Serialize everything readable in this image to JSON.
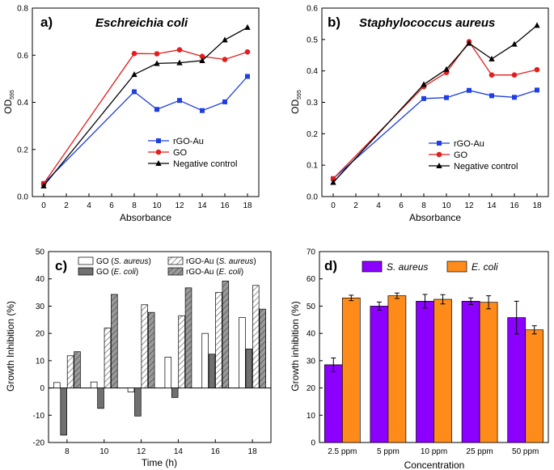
{
  "chart_data": [
    {
      "id": "a",
      "type": "line",
      "panel_label": "a)",
      "title": "Eschreichia coli",
      "xlabel": "Absorbance",
      "ylabel": "OD",
      "ylabel_sub": "595",
      "x": [
        0,
        8,
        10,
        12,
        14,
        16,
        18
      ],
      "xlim": [
        -1,
        19
      ],
      "xticks": [
        0,
        2,
        4,
        6,
        8,
        10,
        12,
        14,
        16,
        18
      ],
      "ylim": [
        0,
        0.8
      ],
      "yticks": [
        0.0,
        0.2,
        0.4,
        0.6,
        0.8
      ],
      "legend_position": "bottom-right",
      "series": [
        {
          "name": "rGO-Au",
          "color": "#1f3fe0",
          "marker": "square",
          "values": [
            0.055,
            0.445,
            0.37,
            0.408,
            0.365,
            0.402,
            0.51
          ]
        },
        {
          "name": "GO",
          "color": "#e01f1f",
          "marker": "circle",
          "values": [
            0.055,
            0.607,
            0.606,
            0.623,
            0.595,
            0.582,
            0.614
          ]
        },
        {
          "name": "Negative control",
          "color": "#000000",
          "marker": "triangle",
          "values": [
            0.045,
            0.518,
            0.565,
            0.568,
            0.577,
            0.665,
            0.718
          ]
        }
      ]
    },
    {
      "id": "b",
      "type": "line",
      "panel_label": "b)",
      "title": "Staphylococcus aureus",
      "xlabel": "Absorbance",
      "ylabel": "OD",
      "ylabel_sub": "595",
      "x": [
        0,
        8,
        10,
        12,
        14,
        16,
        18
      ],
      "xlim": [
        -1,
        19
      ],
      "xticks": [
        0,
        2,
        4,
        6,
        8,
        10,
        12,
        14,
        16,
        18
      ],
      "ylim": [
        0,
        0.6
      ],
      "yticks": [
        0.0,
        0.1,
        0.2,
        0.3,
        0.4,
        0.5,
        0.6
      ],
      "legend_position": "bottom-right",
      "series": [
        {
          "name": "rGO-Au",
          "color": "#1f3fe0",
          "marker": "square",
          "values": [
            0.057,
            0.312,
            0.315,
            0.338,
            0.321,
            0.316,
            0.339
          ]
        },
        {
          "name": "GO",
          "color": "#e01f1f",
          "marker": "circle",
          "values": [
            0.057,
            0.35,
            0.395,
            0.493,
            0.387,
            0.387,
            0.404
          ]
        },
        {
          "name": "Negative control",
          "color": "#000000",
          "marker": "triangle",
          "values": [
            0.045,
            0.357,
            0.405,
            0.488,
            0.438,
            0.485,
            0.545
          ]
        }
      ]
    },
    {
      "id": "c",
      "type": "bar",
      "panel_label": "c)",
      "title": "",
      "xlabel": "Time (h)",
      "ylabel": "Growth Inhibition (%)",
      "categories": [
        "8",
        "10",
        "12",
        "14",
        "16",
        "18"
      ],
      "ylim": [
        -20,
        50
      ],
      "yticks": [
        -20,
        -10,
        0,
        10,
        20,
        30,
        40,
        50
      ],
      "legend_position": "top",
      "series": [
        {
          "name": "GO",
          "species": "S. aureus",
          "fill": "white",
          "values": [
            2.0,
            2.2,
            -1.5,
            11.3,
            20.0,
            25.8
          ]
        },
        {
          "name": "GO",
          "species": "E. coli",
          "fill": "dark-gray",
          "values": [
            -17.3,
            -7.5,
            -10.3,
            -3.5,
            12.4,
            14.3
          ]
        },
        {
          "name": "rGO-Au",
          "species": "S. aureus",
          "fill": "light-hatch",
          "values": [
            11.8,
            22.0,
            30.5,
            26.5,
            35.0,
            37.6
          ]
        },
        {
          "name": "rGO-Au",
          "species": "E. coli",
          "fill": "dark-hatch",
          "values": [
            13.3,
            34.3,
            27.7,
            36.7,
            39.2,
            28.9
          ]
        }
      ]
    },
    {
      "id": "d",
      "type": "bar",
      "panel_label": "d)",
      "title": "",
      "xlabel": "Concentration",
      "ylabel": "Growth inhibition (%)",
      "categories": [
        "2.5 ppm",
        "5 ppm",
        "10 ppm",
        "25 ppm",
        "50 ppm"
      ],
      "ylim": [
        0,
        70
      ],
      "yticks": [
        0,
        10,
        20,
        30,
        40,
        50,
        60,
        70
      ],
      "legend_position": "top",
      "series": [
        {
          "name": "S. aureus",
          "color": "#8b00ff",
          "values": [
            28.5,
            50.0,
            51.8,
            51.8,
            45.8
          ],
          "errors": [
            2.5,
            1.5,
            2.5,
            1.2,
            6.0
          ]
        },
        {
          "name": "E. coli",
          "color": "#ff8c1a",
          "values": [
            53.0,
            53.8,
            52.5,
            51.4,
            41.3
          ],
          "errors": [
            1.0,
            1.0,
            1.7,
            2.4,
            1.5
          ]
        }
      ]
    }
  ]
}
